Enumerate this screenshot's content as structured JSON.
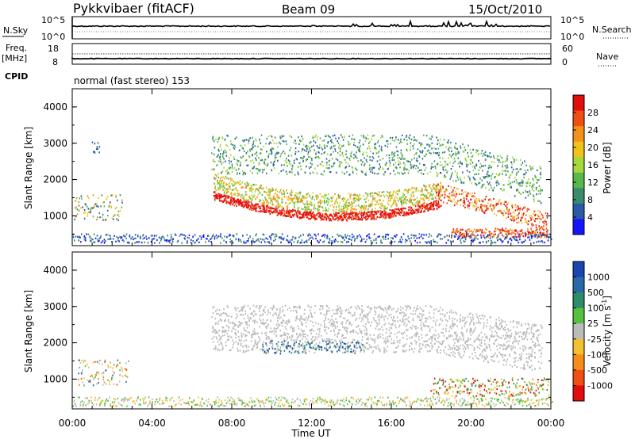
{
  "header": {
    "station": "Pykkvibaer (fitACF)",
    "beam": "Beam 09",
    "date": "15/Oct/2010"
  },
  "colors": {
    "axes": "#000000",
    "velocity_ground": "#bbbbbb"
  },
  "chart_data": [
    {
      "type": "line",
      "panel": "noise",
      "left_label": "N.Sky",
      "right_label": "N.Search",
      "left_ticks": [
        "10^5",
        "10^0"
      ],
      "right_ticks": [
        "10^5",
        "10^0"
      ]
    },
    {
      "type": "line",
      "panel": "frequency-nave",
      "left_label": "Freq.",
      "left_unit": "[MHz]",
      "right_label": "Nave",
      "left_ticks": [
        "18",
        "8"
      ],
      "right_ticks": [
        "60",
        "0"
      ],
      "cpid_label": "CPID",
      "cpid_text": "normal (fast stereo) 153"
    },
    {
      "type": "heatmap",
      "panel": "power",
      "ylabel": "Slant Range [km]",
      "ylim": [
        180,
        4500
      ],
      "y_ticks": [
        "1000",
        "2000",
        "3000",
        "4000"
      ],
      "colorbar_label": "Power [dB]",
      "colorbar_ticks": [
        "4",
        "8",
        "12",
        "16",
        "20",
        "24",
        "28"
      ],
      "colorbar_colors": [
        "#1414ff",
        "#2a5aa8",
        "#3a8c6e",
        "#58b848",
        "#a6d83c",
        "#f2c21c",
        "#f59018",
        "#ef4e14",
        "#e20d0d"
      ],
      "ranges": [
        0,
        30
      ]
    },
    {
      "type": "heatmap",
      "panel": "velocity",
      "ylabel": "Slant Range [km]",
      "ylim": [
        180,
        4500
      ],
      "y_ticks": [
        "1000",
        "2000",
        "3000",
        "4000"
      ],
      "xlabel": "Time UT",
      "x_ticks": [
        "00:00",
        "04:00",
        "08:00",
        "12:00",
        "16:00",
        "20:00",
        "00:00"
      ],
      "colorbar_label": "Velocity [m s",
      "colorbar_label_sup": "-1",
      "colorbar_label_end": "]",
      "colorbar_ticks": [
        "1000",
        "500",
        "100",
        "25",
        "-25",
        "-100",
        "-500",
        "-1000"
      ],
      "colorbar_colors": [
        "#1a46b0",
        "#2a6aa8",
        "#2e8c6a",
        "#56c040",
        "#bbbbbb",
        "#f2c030",
        "#f58c1c",
        "#ef4e14",
        "#e20d0d"
      ]
    }
  ]
}
